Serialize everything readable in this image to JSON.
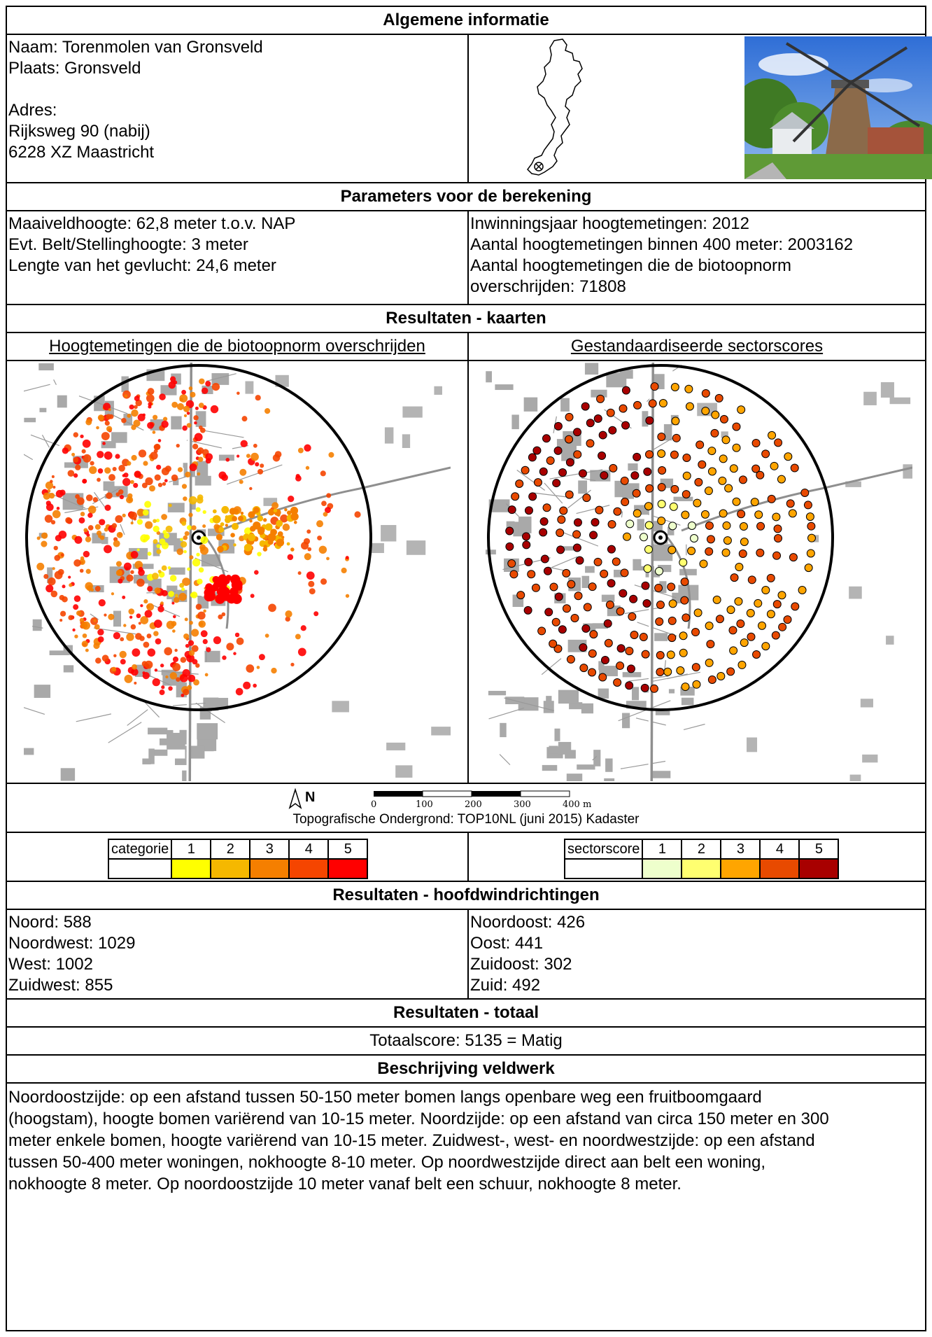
{
  "sections": {
    "general": "Algemene informatie",
    "parameters": "Parameters voor de berekening",
    "maps": "Resultaten - kaarten",
    "directions": "Resultaten - hoofdwindrichtingen",
    "total": "Resultaten - totaal",
    "fieldwork": "Beschrijving veldwerk"
  },
  "general": {
    "naam": "Naam: Torenmolen van Gronsveld",
    "plaats": "Plaats: Gronsveld",
    "adres_label": "Adres:",
    "adres_1": "Rijksweg 90 (nabij)",
    "adres_2": "6228 XZ Maastricht"
  },
  "parameters": {
    "left": [
      "Maaiveldhoogte: 62,8 meter t.o.v. NAP",
      "Evt. Belt/Stellinghoogte: 3 meter",
      "Lengte van het gevlucht: 24,6 meter"
    ],
    "right": [
      "Inwinningsjaar hoogtemetingen: 2012",
      "Aantal hoogtemetingen binnen 400 meter: 2003162",
      "Aantal hoogtemetingen die de biotoopnorm",
      "overschrijden: 71808"
    ]
  },
  "maps": {
    "left_title": "Hoogtemetingen die de biotoopnorm overschrijden",
    "right_title": "Gestandaardiseerde sectorscores",
    "north": "N",
    "scale_ticks": [
      "0",
      "100",
      "200",
      "300",
      "400 m"
    ],
    "source": "Topografische Ondergrond: TOP10NL (juni 2015) Kadaster"
  },
  "legend_left": {
    "label": "categorie",
    "classes": [
      "1",
      "2",
      "3",
      "4",
      "5"
    ],
    "colors": [
      "#ffff00",
      "#f5b800",
      "#f57f00",
      "#f54500",
      "#ff0000"
    ]
  },
  "legend_right": {
    "label": "sectorscore",
    "classes": [
      "1",
      "2",
      "3",
      "4",
      "5"
    ],
    "colors": [
      "#eeffcc",
      "#ffff70",
      "#ffa500",
      "#e84a00",
      "#a80000"
    ]
  },
  "directions": {
    "left": [
      "Noord: 588",
      "Noordwest: 1029",
      "West: 1002",
      "Zuidwest: 855"
    ],
    "right": [
      "Noordoost: 426",
      "Oost: 441",
      "Zuidoost: 302",
      "Zuid: 492"
    ]
  },
  "total": "Totaalscore: 5135 = Matig",
  "fieldwork": [
    "Noordoostzijde: op een afstand tussen 50-150 meter bomen langs openbare weg een fruitboomgaard",
    "(hoogstam), hoogte bomen variërend van 10-15 meter. Noordzijde: op een afstand van circa 150 meter en 300",
    "meter enkele bomen, hoogte variërend van 10-15 meter. Zuidwest-, west- en noordwestzijde: op een afstand",
    "tussen 50-400 meter woningen, nokhoogte 8-10 meter. Op noordwestzijde direct aan belt een woning,",
    "nokhoogte 8 meter. Op noordoostzijde 10 meter vanaf belt een schuur, nokhoogte 8 meter."
  ]
}
